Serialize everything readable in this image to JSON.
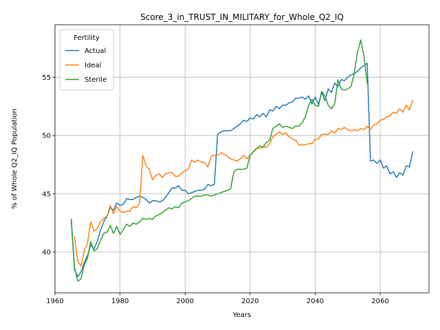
{
  "chart_data": {
    "type": "line",
    "title": "Score_3_in_TRUST_IN_MILITARY_for_Whole_Q2_IQ",
    "xlabel": "Years",
    "ylabel": "% of Whole Q2_IQ Population",
    "xlim": [
      1960,
      2075
    ],
    "ylim": [
      36.5,
      59.5
    ],
    "xticks": [
      1960,
      1980,
      2000,
      2020,
      2040,
      2060
    ],
    "yticks": [
      40,
      45,
      50,
      55
    ],
    "grid": true,
    "legend": {
      "title": "Fertility",
      "placement": "top-left"
    },
    "series": [
      {
        "name": "Actual",
        "color": "#1f77b4",
        "x": [
          1965,
          1966,
          1967,
          1968,
          1969,
          1970,
          1971,
          1972,
          1973,
          1974,
          1975,
          1976,
          1977,
          1978,
          1979,
          1980,
          1981,
          1982,
          1983,
          1984,
          1985,
          1986,
          1987,
          1988,
          1989,
          1990,
          1991,
          1992,
          1993,
          1994,
          1995,
          1996,
          1997,
          1998,
          1999,
          2000,
          2001,
          2002,
          2003,
          2004,
          2005,
          2006,
          2007,
          2008,
          2009,
          2010,
          2011,
          2012,
          2013,
          2014,
          2015,
          2016,
          2017,
          2018,
          2019,
          2020,
          2021,
          2022,
          2023,
          2024,
          2025,
          2026,
          2027,
          2028,
          2029,
          2030,
          2031,
          2032,
          2033,
          2034,
          2035,
          2036,
          2037,
          2038,
          2039,
          2040,
          2041,
          2042,
          2043,
          2044,
          2045,
          2046,
          2047,
          2048,
          2049,
          2050,
          2051,
          2052,
          2053,
          2054,
          2055,
          2056,
          2057,
          2058,
          2059,
          2060,
          2061,
          2062,
          2063,
          2064,
          2065,
          2066,
          2067,
          2068,
          2069,
          2070
        ],
        "y": [
          42.8,
          38.5,
          37.9,
          38.3,
          39.1,
          39.7,
          40.6,
          40.3,
          40.9,
          41.9,
          42.6,
          43.1,
          43.8,
          43.6,
          44.2,
          44.0,
          44.1,
          44.6,
          44.5,
          44.5,
          44.7,
          44.8,
          44.7,
          44.5,
          44.2,
          44.4,
          44.4,
          44.3,
          44.4,
          44.7,
          45.1,
          45.5,
          45.5,
          45.7,
          45.3,
          45.3,
          45.0,
          45.1,
          45.2,
          45.3,
          45.3,
          45.4,
          45.8,
          45.7,
          45.8,
          50.1,
          50.3,
          50.4,
          50.4,
          50.4,
          50.6,
          50.8,
          51.0,
          51.3,
          51.2,
          51.5,
          51.4,
          51.8,
          51.6,
          51.9,
          51.6,
          52.2,
          52.1,
          52.5,
          52.3,
          52.6,
          52.6,
          52.8,
          52.9,
          53.2,
          53.2,
          53.3,
          53.1,
          53.4,
          52.7,
          53.3,
          52.7,
          53.7,
          53.0,
          54.0,
          53.7,
          54.5,
          54.2,
          54.8,
          54.7,
          55.0,
          55.2,
          55.3,
          55.5,
          55.8,
          56.0,
          56.2,
          47.8,
          47.9,
          47.6,
          47.9,
          47.2,
          47.4,
          46.7,
          46.9,
          46.4,
          46.8,
          46.6,
          47.4,
          47.3,
          48.6
        ]
      },
      {
        "name": "Ideal",
        "color": "#ff7f0e",
        "x": [
          1966,
          1967,
          1968,
          1969,
          1970,
          1971,
          1972,
          1973,
          1974,
          1975,
          1976,
          1977,
          1978,
          1979,
          1980,
          1981,
          1982,
          1983,
          1984,
          1985,
          1986,
          1987,
          1988,
          1989,
          1990,
          1991,
          1992,
          1993,
          1994,
          1995,
          1996,
          1997,
          1998,
          1999,
          2000,
          2001,
          2002,
          2003,
          2004,
          2005,
          2006,
          2007,
          2008,
          2009,
          2010,
          2011,
          2012,
          2013,
          2014,
          2015,
          2016,
          2017,
          2018,
          2019,
          2020,
          2021,
          2022,
          2023,
          2024,
          2025,
          2026,
          2027,
          2028,
          2029,
          2030,
          2031,
          2032,
          2033,
          2034,
          2035,
          2036,
          2037,
          2038,
          2039,
          2040,
          2041,
          2042,
          2043,
          2044,
          2045,
          2046,
          2047,
          2048,
          2049,
          2050,
          2051,
          2052,
          2053,
          2054,
          2055,
          2056,
          2057,
          2058,
          2059,
          2060,
          2061,
          2062,
          2063,
          2064,
          2065,
          2066,
          2067,
          2068,
          2069,
          2070
        ],
        "y": [
          41.3,
          39.2,
          38.8,
          40.1,
          40.8,
          42.6,
          41.8,
          42.0,
          42.6,
          42.9,
          43.1,
          44.0,
          43.3,
          43.9,
          43.5,
          43.4,
          43.5,
          43.5,
          43.9,
          43.8,
          44.2,
          48.3,
          47.4,
          47.1,
          46.2,
          46.6,
          46.7,
          46.4,
          46.7,
          46.8,
          46.8,
          46.5,
          46.5,
          46.8,
          47.0,
          47.1,
          47.9,
          47.7,
          47.9,
          47.7,
          47.7,
          47.3,
          48.2,
          48.3,
          48.3,
          48.5,
          48.4,
          48.2,
          48.0,
          47.9,
          47.8,
          48.0,
          48.3,
          48.0,
          48.3,
          48.6,
          48.9,
          48.9,
          49.0,
          49.0,
          49.3,
          49.9,
          50.1,
          50.3,
          50.1,
          50.2,
          49.9,
          49.7,
          49.6,
          49.2,
          49.2,
          49.2,
          49.3,
          49.3,
          49.7,
          49.7,
          50.1,
          50.1,
          50.1,
          50.4,
          50.2,
          50.6,
          50.5,
          50.7,
          50.5,
          50.4,
          50.5,
          50.4,
          50.6,
          50.5,
          50.8,
          50.5,
          50.9,
          51.0,
          51.3,
          51.4,
          51.6,
          51.7,
          52.0,
          51.9,
          52.3,
          52.0,
          52.6,
          52.2,
          53.0
        ]
      },
      {
        "name": "Sterile",
        "color": "#2ca02c",
        "x": [
          1965,
          1966,
          1967,
          1968,
          1969,
          1970,
          1971,
          1972,
          1973,
          1974,
          1975,
          1976,
          1977,
          1978,
          1979,
          1980,
          1981,
          1982,
          1983,
          1984,
          1985,
          1986,
          1987,
          1988,
          1989,
          1990,
          1991,
          1992,
          1993,
          1994,
          1995,
          1996,
          1997,
          1998,
          1999,
          2000,
          2001,
          2002,
          2003,
          2004,
          2005,
          2006,
          2007,
          2008,
          2009,
          2010,
          2011,
          2012,
          2013,
          2014,
          2015,
          2016,
          2017,
          2018,
          2019,
          2020,
          2021,
          2022,
          2023,
          2024,
          2025,
          2026,
          2027,
          2028,
          2029,
          2030,
          2031,
          2032,
          2033,
          2034,
          2035,
          2036,
          2037,
          2038,
          2039,
          2040,
          2041,
          2042,
          2043,
          2044,
          2045,
          2046,
          2047,
          2048,
          2049,
          2050,
          2051,
          2052,
          2053,
          2054,
          2055,
          2056
        ],
        "y": [
          42.6,
          38.7,
          37.5,
          37.7,
          38.9,
          39.5,
          40.9,
          40.1,
          40.3,
          41.0,
          41.6,
          41.7,
          42.3,
          41.6,
          42.2,
          41.5,
          41.9,
          42.4,
          42.2,
          42.5,
          42.4,
          42.6,
          42.9,
          42.8,
          42.9,
          42.8,
          43.1,
          43.2,
          43.4,
          43.6,
          43.8,
          43.7,
          43.9,
          43.8,
          44.2,
          44.3,
          44.4,
          44.6,
          44.8,
          44.8,
          44.8,
          44.9,
          44.9,
          44.8,
          44.9,
          45.0,
          45.1,
          45.2,
          45.3,
          45.4,
          46.9,
          47.1,
          47.1,
          47.1,
          47.2,
          48.3,
          48.6,
          48.9,
          49.1,
          49.0,
          49.4,
          49.6,
          50.6,
          50.8,
          51.0,
          50.7,
          50.8,
          50.7,
          50.6,
          50.8,
          50.8,
          51.1,
          51.6,
          52.6,
          53.1,
          52.6,
          52.5,
          53.8,
          53.4,
          52.6,
          52.3,
          52.7,
          54.8,
          54.0,
          53.9,
          54.0,
          54.2,
          55.3,
          57.1,
          58.2,
          56.8,
          54.5
        ]
      }
    ]
  }
}
